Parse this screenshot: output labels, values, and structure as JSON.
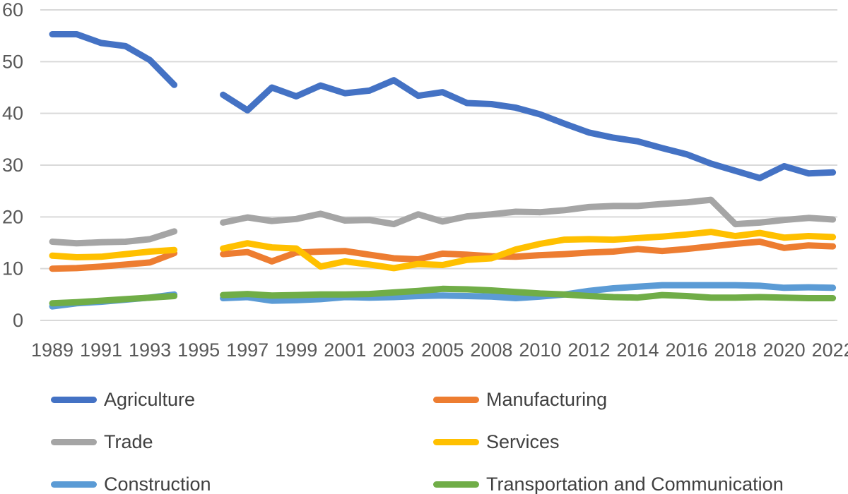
{
  "chart_data": {
    "type": "line",
    "title": "",
    "categories": [
      "1989",
      "1990",
      "1991",
      "1992",
      "1993",
      "1994",
      "1995",
      "1996",
      "1997",
      "1998",
      "1999",
      "2000",
      "2001",
      "2002",
      "2003",
      "2004",
      "2005",
      "2007",
      "2008",
      "2009",
      "2010",
      "2011",
      "2012",
      "2013",
      "2014",
      "2015",
      "2016",
      "2017",
      "2018",
      "2019",
      "2020",
      "2021",
      "2022"
    ],
    "x_tick_labels": [
      "1989",
      "1991",
      "1993",
      "1995",
      "1997",
      "1999",
      "2001",
      "2003",
      "2005",
      "2008",
      "2010",
      "2012",
      "2014",
      "2016",
      "2018",
      "2020",
      "2022"
    ],
    "y_axis": {
      "min": 0,
      "max": 60,
      "step": 10,
      "tick_labels": [
        "0",
        "10",
        "20",
        "30",
        "40",
        "50",
        "60"
      ]
    },
    "grid": "horizontal",
    "legend_position": "bottom",
    "series": [
      {
        "name": "Agriculture",
        "color": "#4472C4",
        "values": [
          55.3,
          55.3,
          53.6,
          53.0,
          50.3,
          45.5,
          null,
          43.6,
          40.6,
          45.0,
          43.3,
          45.4,
          43.9,
          44.4,
          46.4,
          43.4,
          44.1,
          42.0,
          41.8,
          41.1,
          39.8,
          38.0,
          36.3,
          35.3,
          34.6,
          33.3,
          32.1,
          30.3,
          28.9,
          27.5,
          29.8,
          28.4,
          28.6
        ]
      },
      {
        "name": "Manufacturing",
        "color": "#ED7D31",
        "values": [
          10.0,
          10.1,
          10.4,
          10.8,
          11.2,
          13.0,
          null,
          12.8,
          13.2,
          11.4,
          13.1,
          13.3,
          13.4,
          12.7,
          12.0,
          11.8,
          12.9,
          12.7,
          12.4,
          12.3,
          12.6,
          12.8,
          13.1,
          13.3,
          13.8,
          13.4,
          13.8,
          14.3,
          14.8,
          15.2,
          14.0,
          14.5,
          14.3
        ]
      },
      {
        "name": "Trade",
        "color": "#A5A5A5",
        "values": [
          15.2,
          14.9,
          15.1,
          15.2,
          15.7,
          17.2,
          null,
          18.9,
          19.9,
          19.2,
          19.6,
          20.6,
          19.3,
          19.4,
          18.6,
          20.5,
          19.1,
          20.1,
          20.5,
          21.0,
          20.9,
          21.3,
          21.9,
          22.1,
          22.1,
          22.5,
          22.8,
          23.3,
          18.6,
          18.9,
          19.4,
          19.8,
          19.5
        ]
      },
      {
        "name": "Services",
        "color": "#FFC000",
        "values": [
          12.5,
          12.2,
          12.3,
          12.8,
          13.3,
          13.6,
          null,
          13.9,
          14.9,
          14.1,
          13.9,
          10.4,
          11.4,
          10.8,
          10.1,
          10.9,
          10.7,
          11.7,
          12.0,
          13.7,
          14.8,
          15.6,
          15.7,
          15.6,
          15.9,
          16.2,
          16.6,
          17.1,
          16.3,
          16.9,
          16.0,
          16.3,
          16.1
        ]
      },
      {
        "name": "Construction",
        "color": "#5B9BD5",
        "values": [
          2.7,
          3.3,
          3.6,
          4.0,
          4.4,
          5.0,
          null,
          4.3,
          4.5,
          3.8,
          3.9,
          4.1,
          4.5,
          4.4,
          4.5,
          4.7,
          4.8,
          4.7,
          4.6,
          4.3,
          4.6,
          5.0,
          5.7,
          6.2,
          6.5,
          6.8,
          6.8,
          6.8,
          6.8,
          6.7,
          6.3,
          6.4,
          6.3
        ]
      },
      {
        "name": "Transportation and Communication",
        "color": "#70AD47",
        "values": [
          3.3,
          3.5,
          3.8,
          4.1,
          4.4,
          4.7,
          null,
          4.9,
          5.1,
          4.8,
          4.9,
          5.0,
          5.0,
          5.1,
          5.4,
          5.7,
          6.1,
          6.0,
          5.8,
          5.5,
          5.2,
          5.0,
          4.7,
          4.5,
          4.4,
          4.9,
          4.7,
          4.4,
          4.4,
          4.5,
          4.4,
          4.3,
          4.3
        ]
      }
    ],
    "style": {
      "grid_color": "#D9D9D9",
      "axis_label_color": "#595959",
      "legend_label_color": "#404040",
      "background": "#FFFFFF",
      "line_width": 9
    }
  }
}
